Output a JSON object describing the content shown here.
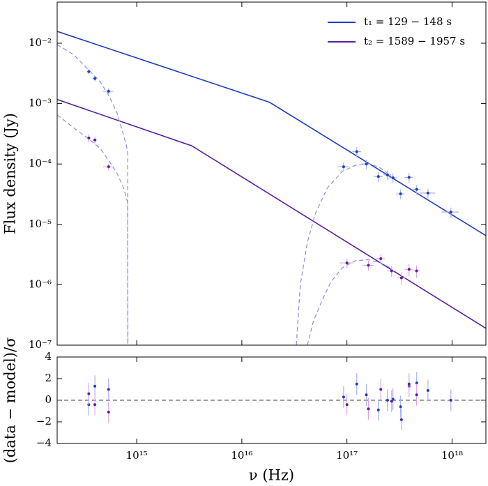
{
  "chart_data": [
    {
      "type": "line",
      "ylabel": "Flux density (Jy)",
      "xlog": true,
      "ylog": true,
      "xlim": [
        175000000000000.0,
        2.1e+18
      ],
      "xticks": [
        {
          "value": 1000000000000000.0,
          "label": "10¹⁵"
        },
        {
          "value": 1e+16,
          "label": "10¹⁶"
        },
        {
          "value": 1e+17,
          "label": "10¹⁷"
        },
        {
          "value": 1e+18,
          "label": "10¹⁸"
        }
      ],
      "show_xtick_labels": false,
      "ylim": [
        1e-07,
        0.048
      ],
      "yticks": [
        {
          "value": 1e-07,
          "label": "10⁻⁷"
        },
        {
          "value": 1e-06,
          "label": "10⁻⁶"
        },
        {
          "value": 1e-05,
          "label": "10⁻⁵"
        },
        {
          "value": 0.0001,
          "label": "10⁻⁴"
        },
        {
          "value": 0.001,
          "label": "10⁻³"
        },
        {
          "value": 0.01,
          "label": "10⁻²"
        }
      ],
      "legend": "upper right",
      "series": [
        {
          "name": "t₁ = 129 − 148 s",
          "color": "#1f3dbf",
          "style": "solid",
          "x": [
            175000000000000.0,
            1.84e+16,
            2.1e+18
          ],
          "values": [
            0.0157,
            0.00105,
            6.5e-06
          ]
        },
        {
          "name": "t₂ = 1589 − 1957 s",
          "color": "#5a1f9e",
          "style": "solid",
          "x": [
            175000000000000.0,
            3340000000000000.0,
            2.1e+18
          ],
          "values": [
            0.00117,
            0.0002,
            1.9e-07
          ]
        },
        {
          "color": "#8a8ee0",
          "style": "dashed",
          "x": [
            175000000000000.0,
            250000000000000.0,
            350000000000000.0,
            450000000000000.0,
            550000000000000.0,
            650000000000000.0,
            730000000000000.0,
            800000000000000.0,
            820000000000000.0,
            822000000000000.0
          ],
          "values": [
            0.0095,
            0.0065,
            0.0036,
            0.0023,
            0.0013,
            0.0007,
            0.00035,
            0.0002,
            0.00015,
            1e-07
          ]
        },
        {
          "color": "#8a8ee0",
          "style": "dashed",
          "x": [
            175000000000000.0,
            250000000000000.0,
            350000000000000.0,
            450000000000000.0,
            550000000000000.0,
            650000000000000.0,
            750000000000000.0,
            820000000000000.0,
            825000000000000.0
          ],
          "values": [
            0.00065,
            0.0004,
            0.00026,
            0.00018,
            0.00011,
            7e-05,
            4e-05,
            2.3e-05,
            1e-07
          ]
        },
        {
          "color": "#8a8ee0",
          "style": "dashed",
          "x": [
            3.3e+16,
            3.6e+16,
            4.2e+16,
            5e+16,
            6.5e+16,
            9e+16,
            1.2e+17,
            1.6e+17,
            2e+17,
            2.6e+17
          ],
          "values": [
            1e-07,
            1e-06,
            5e-06,
            1.5e-05,
            4e-05,
            7.5e-05,
            9.5e-05,
            0.0001,
            9e-05,
            6.5e-05
          ]
        },
        {
          "color": "#8a8ee0",
          "style": "dashed",
          "x": [
            4.2e+16,
            4.8e+16,
            5.8e+16,
            7e+16,
            9e+16,
            1.2e+17,
            1.6e+17,
            2.1e+17,
            2.6e+17
          ],
          "values": [
            1e-07,
            2.5e-07,
            5.5e-07,
            1.1e-06,
            1.9e-06,
            2.5e-06,
            2.6e-06,
            2.3e-06,
            1.9e-06
          ]
        },
        {
          "color": "#1f3dbf",
          "error_color": "#aab2ee",
          "style": "points",
          "x": [
            350000000000000.0,
            400000000000000.0,
            540000000000000.0,
            9.3e+16,
            1.24e+17,
            1.53e+17,
            1.99e+17,
            2.43e+17,
            2.74e+17,
            3.24e+17,
            3.9e+17,
            4.61e+17,
            5.9e+17,
            9.75e+17
          ],
          "x_errors": [
            15000000000000.0,
            18000000000000.0,
            60000000000000.0,
            1.2e+16,
            1.2e+16,
            1.5e+16,
            2e+16,
            2e+16,
            2.5e+16,
            3e+16,
            3.5e+16,
            4e+16,
            1e+17,
            1.8e+17
          ],
          "values": [
            0.0034,
            0.0026,
            0.0016,
            9e-05,
            0.00016,
            0.0001,
            6.2e-05,
            6.6e-05,
            5.9e-05,
            3.2e-05,
            6e-05,
            3.8e-05,
            3.3e-05,
            1.6e-05
          ],
          "errors": [
            0.0003,
            0.00025,
            0.0002,
            1.5e-05,
            3e-05,
            1.8e-05,
            1.2e-05,
            1.2e-05,
            1.1e-05,
            6e-06,
            1.1e-05,
            7e-06,
            6e-06,
            3e-06
          ]
        },
        {
          "color": "#5a1f9e",
          "error_color": "#e0a8e6",
          "style": "points",
          "x": [
            350000000000000.0,
            400000000000000.0,
            540000000000000.0,
            1e+17,
            1.6e+17,
            2.1e+17,
            2.66e+17,
            3.3e+17,
            3.9e+17,
            4.6e+17
          ],
          "x_errors": [
            15000000000000.0,
            18000000000000.0,
            60000000000000.0,
            1.5e+16,
            2e+16,
            2e+16,
            2.5e+16,
            3e+16,
            3.5e+16,
            4e+16
          ],
          "values": [
            0.00027,
            0.00025,
            9e-05,
            2.3e-06,
            2.1e-06,
            2.7e-06,
            1.7e-06,
            1.3e-06,
            1.8e-06,
            1.7e-06
          ],
          "errors": [
            4e-05,
            3.5e-05,
            1.2e-05,
            4e-07,
            4e-07,
            5e-07,
            3.5e-07,
            3e-07,
            4e-07,
            4e-07
          ]
        }
      ]
    },
    {
      "type": "scatter",
      "xlabel": "ν (Hz)",
      "ylabel": "(data − model)/σ",
      "xlog": true,
      "ylog": false,
      "xlim": [
        175000000000000.0,
        2.1e+18
      ],
      "xticks": [
        {
          "value": 1000000000000000.0,
          "label": "10¹⁵"
        },
        {
          "value": 1e+16,
          "label": "10¹⁶"
        },
        {
          "value": 1e+17,
          "label": "10¹⁷"
        },
        {
          "value": 1e+18,
          "label": "10¹⁸"
        }
      ],
      "show_xtick_labels": true,
      "ylim": [
        -4,
        4
      ],
      "yticks": [
        {
          "value": -4,
          "label": "−4"
        },
        {
          "value": -2,
          "label": "−2"
        },
        0,
        2,
        4
      ],
      "reference_line": 0,
      "series": [
        {
          "color": "#1f3dbf",
          "error_color": "#aab2ee",
          "style": "points",
          "x": [
            350000000000000.0,
            400000000000000.0,
            540000000000000.0,
            9.3e+16,
            1.24e+17,
            1.53e+17,
            1.99e+17,
            2.43e+17,
            2.74e+17,
            3.24e+17,
            3.9e+17,
            4.61e+17,
            5.9e+17,
            9.75e+17
          ],
          "values": [
            -0.4,
            1.3,
            1.0,
            0.3,
            1.5,
            0.5,
            -0.9,
            0.0,
            0.1,
            -0.6,
            1.3,
            1.6,
            0.9,
            0.0
          ],
          "errors": [
            1,
            1,
            1,
            1,
            1,
            1,
            1,
            1,
            1,
            1,
            1,
            1,
            1,
            1
          ]
        },
        {
          "color": "#5a1f9e",
          "error_color": "#e0a8e6",
          "style": "points",
          "x": [
            350000000000000.0,
            400000000000000.0,
            540000000000000.0,
            1e+17,
            1.6e+17,
            2.1e+17,
            2.66e+17,
            3.3e+17,
            3.9e+17,
            4.6e+17
          ],
          "values": [
            0.6,
            -0.4,
            -1.1,
            -0.4,
            -0.8,
            1.0,
            -0.1,
            -1.8,
            1.5,
            0.5
          ],
          "errors": [
            1,
            1,
            1,
            1,
            1,
            1,
            1,
            1,
            1,
            1
          ]
        }
      ]
    }
  ]
}
